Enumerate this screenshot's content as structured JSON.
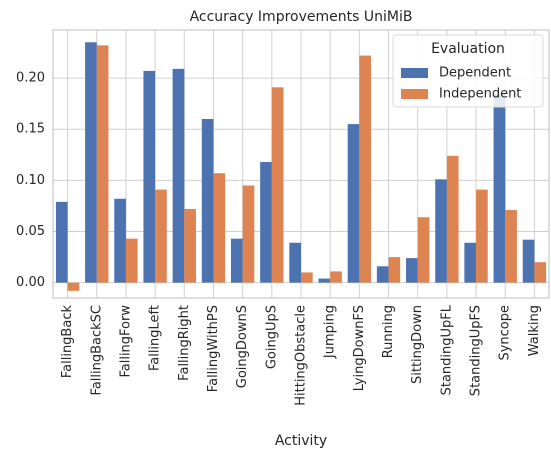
{
  "chart_data": {
    "type": "bar",
    "title": "Accuracy Improvements UniMiB",
    "x_label": "Activity",
    "categories": [
      "FallingBack",
      "FallingBackSC",
      "FallingForw",
      "FallingLeft",
      "FallingRight",
      "FallingWithPS",
      "GoingDownS",
      "GoingUpS",
      "HittingObstacle",
      "Jumping",
      "LyingDownFS",
      "Running",
      "SittingDown",
      "StandingUpFL",
      "StandingUpFS",
      "Syncope",
      "Walking"
    ],
    "series": [
      {
        "name": "Dependent",
        "color": "#4c72b0",
        "values": [
          0.079,
          0.235,
          0.082,
          0.207,
          0.209,
          0.16,
          0.043,
          0.118,
          0.039,
          0.004,
          0.155,
          0.016,
          0.024,
          0.101,
          0.039,
          0.185,
          0.042
        ]
      },
      {
        "name": "Independent",
        "color": "#dd8452",
        "values": [
          -0.008,
          0.232,
          0.043,
          0.091,
          0.072,
          0.107,
          0.095,
          0.191,
          0.01,
          0.011,
          0.222,
          0.025,
          0.064,
          0.124,
          0.091,
          0.071,
          0.02
        ]
      }
    ],
    "legend_title": "Evaluation",
    "legend": "upper right",
    "ylim": [
      -0.015,
      0.247
    ],
    "yticks": [
      {
        "value": 0,
        "label": "0.00"
      },
      {
        "value": 0.05,
        "label": "0.05"
      },
      {
        "value": 0.1,
        "label": "0.10"
      },
      {
        "value": 0.15,
        "label": "0.15"
      },
      {
        "value": 0.2,
        "label": "0.20"
      }
    ],
    "grid": true
  }
}
